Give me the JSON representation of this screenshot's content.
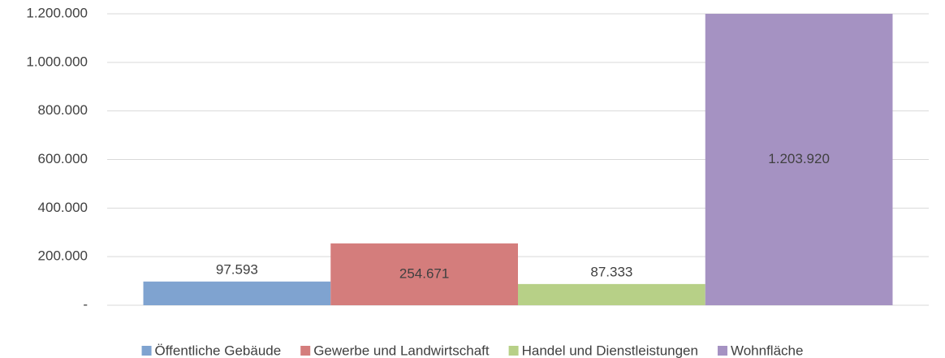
{
  "chart_data": {
    "type": "bar",
    "categories": [
      null
    ],
    "series": [
      {
        "name": "Öffentliche Gebäude",
        "color": "#7fa3d0",
        "values": [
          97593
        ],
        "value_labels": [
          "97.593"
        ]
      },
      {
        "name": "Gewerbe und Landwirtschaft",
        "color": "#d47d7c",
        "values": [
          254671
        ],
        "value_labels": [
          "254.671"
        ]
      },
      {
        "name": "Handel und Dienstleistungen",
        "color": "#b7d087",
        "values": [
          87333
        ],
        "value_labels": [
          "87.333"
        ]
      },
      {
        "name": "Wohnfläche",
        "color": "#a592c2",
        "values": [
          1203920
        ],
        "value_labels": [
          "1.203.920"
        ]
      }
    ],
    "ylim": [
      0,
      1200000
    ],
    "yticks": [
      {
        "value": 0,
        "label": "-"
      },
      {
        "value": 200000,
        "label": "200.000"
      },
      {
        "value": 400000,
        "label": "400.000"
      },
      {
        "value": 600000,
        "label": "600.000"
      },
      {
        "value": 800000,
        "label": "800.000"
      },
      {
        "value": 1000000,
        "label": "1.000.000"
      },
      {
        "value": 1200000,
        "label": "1.200.000"
      }
    ],
    "grid": true,
    "legend": "bottom"
  }
}
